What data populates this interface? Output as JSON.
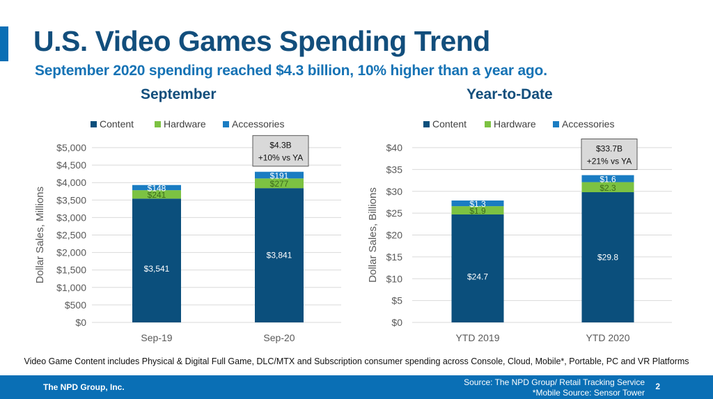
{
  "header": {
    "title": "U.S. Video Games Spending Trend",
    "subtitle": "September 2020 spending reached $4.3 billion, 10% higher than a year ago."
  },
  "colors": {
    "content": "#0b4f7c",
    "hardware": "#7cc242",
    "accessories": "#1a7cc2",
    "grid": "#d9d9d9",
    "axis_text": "#595959"
  },
  "chart_data": [
    {
      "type": "bar",
      "stacked": true,
      "title": "September",
      "xlabel": "",
      "ylabel": "Dollar Sales, Millions",
      "ylim": [
        0,
        5000
      ],
      "yticks": [
        0,
        500,
        1000,
        1500,
        2000,
        2500,
        3000,
        3500,
        4000,
        4500,
        5000
      ],
      "ytick_labels": [
        "$0",
        "$500",
        "$1,000",
        "$1,500",
        "$2,000",
        "$2,500",
        "$3,000",
        "$3,500",
        "$4,000",
        "$4,500",
        "$5,000"
      ],
      "categories": [
        "Sep-19",
        "Sep-20"
      ],
      "legend": [
        "Content",
        "Hardware",
        "Accessories"
      ],
      "legend_position": "top",
      "grid": true,
      "series": [
        {
          "name": "Content",
          "values": [
            3541,
            3841
          ],
          "labels": [
            "$3,541",
            "$3,841"
          ]
        },
        {
          "name": "Hardware",
          "values": [
            241,
            277
          ],
          "labels": [
            "$241",
            "$277"
          ]
        },
        {
          "name": "Accessories",
          "values": [
            148,
            191
          ],
          "labels": [
            "$148",
            "$191"
          ]
        }
      ],
      "annotation": {
        "category_index": 1,
        "line1": "$4.3B",
        "line2": "+10% vs YA"
      }
    },
    {
      "type": "bar",
      "stacked": true,
      "title": "Year-to-Date",
      "xlabel": "",
      "ylabel": "Dollar Sales, Billions",
      "ylim": [
        0,
        40
      ],
      "yticks": [
        0,
        5,
        10,
        15,
        20,
        25,
        30,
        35,
        40
      ],
      "ytick_labels": [
        "$0",
        "$5",
        "$10",
        "$15",
        "$20",
        "$25",
        "$30",
        "$35",
        "$40"
      ],
      "categories": [
        "YTD 2019",
        "YTD 2020"
      ],
      "legend": [
        "Content",
        "Hardware",
        "Accessories"
      ],
      "legend_position": "top",
      "grid": true,
      "series": [
        {
          "name": "Content",
          "values": [
            24.7,
            29.8
          ],
          "labels": [
            "$24.7",
            "$29.8"
          ]
        },
        {
          "name": "Hardware",
          "values": [
            1.9,
            2.3
          ],
          "labels": [
            "$1.9",
            "$2.3"
          ]
        },
        {
          "name": "Accessories",
          "values": [
            1.3,
            1.6
          ],
          "labels": [
            "$1.3",
            "$1.6"
          ]
        }
      ],
      "annotation": {
        "category_index": 1,
        "line1": "$33.7B",
        "line2": "+21% vs YA"
      }
    }
  ],
  "note": "Video Game Content includes Physical & Digital Full Game, DLC/MTX and Subscription consumer spending across Console, Cloud, Mobile*, Portable, PC and VR Platforms",
  "footer": {
    "company": "The NPD Group, Inc.",
    "source_line1": "Source: The NPD Group/ Retail Tracking Service",
    "source_line2": "*Mobile Source: Sensor Tower",
    "page_number": "2"
  }
}
